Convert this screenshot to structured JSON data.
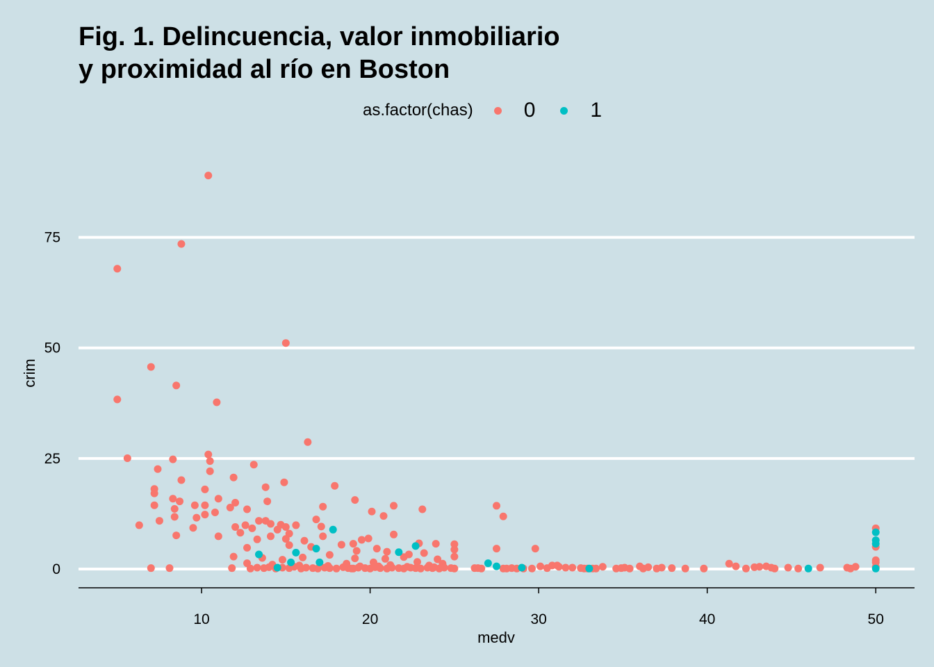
{
  "chart_data": {
    "type": "scatter",
    "title_line1": "Fig. 1. Delincuencia, valor inmobiliario",
    "title_line2": "y proximidad al río en Boston",
    "xlabel": "medv",
    "ylabel": "crim",
    "xlim": [
      2.7,
      52.3
    ],
    "ylim": [
      -4.25,
      93
    ],
    "xticks": [
      10,
      20,
      30,
      40,
      50
    ],
    "xtick_labels": [
      "10",
      "20",
      "30",
      "40",
      "50"
    ],
    "yticks": [
      0,
      25,
      50,
      75
    ],
    "ytick_labels": [
      "0",
      "25",
      "50",
      "75"
    ],
    "grid": "horizontal",
    "legend": {
      "title": "as.factor(chas)",
      "position": "top",
      "entries": [
        "0",
        "1"
      ]
    },
    "colors": {
      "0": "#f8766d",
      "1": "#00bfc4"
    },
    "series": [
      {
        "name": "0",
        "points": [
          [
            10.4,
            88.98
          ],
          [
            8.8,
            73.5
          ],
          [
            5.0,
            67.9
          ],
          [
            15.0,
            51.1
          ],
          [
            7.0,
            45.7
          ],
          [
            8.5,
            41.5
          ],
          [
            5.0,
            38.35
          ],
          [
            10.9,
            37.7
          ],
          [
            16.3,
            28.7
          ],
          [
            10.4,
            25.9
          ],
          [
            5.6,
            25.05
          ],
          [
            8.3,
            24.8
          ],
          [
            10.5,
            24.4
          ],
          [
            13.1,
            23.6
          ],
          [
            7.4,
            22.6
          ],
          [
            10.5,
            22.1
          ],
          [
            11.9,
            20.7
          ],
          [
            8.8,
            20.1
          ],
          [
            14.9,
            19.6
          ],
          [
            17.9,
            18.8
          ],
          [
            13.8,
            18.5
          ],
          [
            7.2,
            18.1
          ],
          [
            10.2,
            18.0
          ],
          [
            7.2,
            17.1
          ],
          [
            8.3,
            15.9
          ],
          [
            11.0,
            15.9
          ],
          [
            19.1,
            15.6
          ],
          [
            8.7,
            15.3
          ],
          [
            13.9,
            15.3
          ],
          [
            12.0,
            15.0
          ],
          [
            7.2,
            14.4
          ],
          [
            9.6,
            14.4
          ],
          [
            10.2,
            14.4
          ],
          [
            21.4,
            14.3
          ],
          [
            27.5,
            14.3
          ],
          [
            17.2,
            14.1
          ],
          [
            11.7,
            13.9
          ],
          [
            8.4,
            13.6
          ],
          [
            12.7,
            13.5
          ],
          [
            23.1,
            13.5
          ],
          [
            20.1,
            13.0
          ],
          [
            10.8,
            12.8
          ],
          [
            10.2,
            12.3
          ],
          [
            20.8,
            12.0
          ],
          [
            27.9,
            11.9
          ],
          [
            8.4,
            11.8
          ],
          [
            9.7,
            11.6
          ],
          [
            16.8,
            11.2
          ],
          [
            7.5,
            10.9
          ],
          [
            13.4,
            10.9
          ],
          [
            13.8,
            10.9
          ],
          [
            14.1,
            10.2
          ],
          [
            14.7,
            10.0
          ],
          [
            6.3,
            9.9
          ],
          [
            12.6,
            9.9
          ],
          [
            15.6,
            9.9
          ],
          [
            17.1,
            9.6
          ],
          [
            12.0,
            9.5
          ],
          [
            15.0,
            9.5
          ],
          [
            9.5,
            9.3
          ],
          [
            13.0,
            9.2
          ],
          [
            14.5,
            8.9
          ],
          [
            12.3,
            8.2
          ],
          [
            15.2,
            8.0
          ],
          [
            21.4,
            7.8
          ],
          [
            8.5,
            7.6
          ],
          [
            11.0,
            7.4
          ],
          [
            14.1,
            7.4
          ],
          [
            17.2,
            7.4
          ],
          [
            19.9,
            6.9
          ],
          [
            15.0,
            6.8
          ],
          [
            13.3,
            6.7
          ],
          [
            19.5,
            6.6
          ],
          [
            16.1,
            6.4
          ],
          [
            22.9,
            5.8
          ],
          [
            19.0,
            5.7
          ],
          [
            23.9,
            5.7
          ],
          [
            25.0,
            5.6
          ],
          [
            18.3,
            5.5
          ],
          [
            15.2,
            5.4
          ],
          [
            16.5,
            5.0
          ],
          [
            12.7,
            4.8
          ],
          [
            20.4,
            4.6
          ],
          [
            27.5,
            4.6
          ],
          [
            29.8,
            4.6
          ],
          [
            25.0,
            4.4
          ],
          [
            19.2,
            4.1
          ],
          [
            21.0,
            3.9
          ],
          [
            23.2,
            3.6
          ],
          [
            22.3,
            3.3
          ],
          [
            17.6,
            3.2
          ],
          [
            25.0,
            2.8
          ],
          [
            11.9,
            2.8
          ],
          [
            22.0,
            2.7
          ],
          [
            19.1,
            2.4
          ],
          [
            20.9,
            2.3
          ],
          [
            24.0,
            2.2
          ],
          [
            14.8,
            2.1
          ],
          [
            13.6,
            2.5
          ],
          [
            16.0,
            2.6
          ],
          [
            18.6,
            1.2
          ],
          [
            20.2,
            1.5
          ],
          [
            22.8,
            1.6
          ],
          [
            24.3,
            1.2
          ],
          [
            12.7,
            1.3
          ],
          [
            14.2,
            1.0
          ],
          [
            15.8,
            0.8
          ],
          [
            17.5,
            0.7
          ],
          [
            19.4,
            0.6
          ],
          [
            21.2,
            0.9
          ],
          [
            23.5,
            0.8
          ],
          [
            11.8,
            0.2
          ],
          [
            7.0,
            0.2
          ],
          [
            8.1,
            0.2
          ],
          [
            12.9,
            0.1
          ],
          [
            13.3,
            0.3
          ],
          [
            13.7,
            0.2
          ],
          [
            14.0,
            0.4
          ],
          [
            14.4,
            0.1
          ],
          [
            14.8,
            0.3
          ],
          [
            15.2,
            0.2
          ],
          [
            15.5,
            0.5
          ],
          [
            15.9,
            0.1
          ],
          [
            16.2,
            0.3
          ],
          [
            16.6,
            0.2
          ],
          [
            16.9,
            0.1
          ],
          [
            17.3,
            0.3
          ],
          [
            17.6,
            0.2
          ],
          [
            18.0,
            0.1
          ],
          [
            18.4,
            0.4
          ],
          [
            18.7,
            0.2
          ],
          [
            19.0,
            0.1
          ],
          [
            19.3,
            0.3
          ],
          [
            19.7,
            0.2
          ],
          [
            20.0,
            0.1
          ],
          [
            20.3,
            0.4
          ],
          [
            20.6,
            0.2
          ],
          [
            21.0,
            0.1
          ],
          [
            21.3,
            0.3
          ],
          [
            21.7,
            0.2
          ],
          [
            22.0,
            0.1
          ],
          [
            22.4,
            0.3
          ],
          [
            22.7,
            0.2
          ],
          [
            23.0,
            0.1
          ],
          [
            23.4,
            0.3
          ],
          [
            23.7,
            0.2
          ],
          [
            24.1,
            0.1
          ],
          [
            24.4,
            0.3
          ],
          [
            24.8,
            0.2
          ],
          [
            25.0,
            0.1
          ],
          [
            18.9,
            0.1
          ],
          [
            20.5,
            0.6
          ],
          [
            22.2,
            0.5
          ],
          [
            23.8,
            0.4
          ],
          [
            26.2,
            0.2
          ],
          [
            26.4,
            0.2
          ],
          [
            26.6,
            0.1
          ],
          [
            27.9,
            0.1
          ],
          [
            28.1,
            0.1
          ],
          [
            28.4,
            0.2
          ],
          [
            28.7,
            0.1
          ],
          [
            29.1,
            0.1
          ],
          [
            29.6,
            0.1
          ],
          [
            30.1,
            0.6
          ],
          [
            30.5,
            0.2
          ],
          [
            30.8,
            0.8
          ],
          [
            31.1,
            0.8
          ],
          [
            31.2,
            0.5
          ],
          [
            31.6,
            0.3
          ],
          [
            32.0,
            0.3
          ],
          [
            32.5,
            0.2
          ],
          [
            32.7,
            0.1
          ],
          [
            32.9,
            0.1
          ],
          [
            33.2,
            0.1
          ],
          [
            33.4,
            0.1
          ],
          [
            33.8,
            0.5
          ],
          [
            34.6,
            0.1
          ],
          [
            34.9,
            0.2
          ],
          [
            35.1,
            0.3
          ],
          [
            35.4,
            0.1
          ],
          [
            36.0,
            0.6
          ],
          [
            36.2,
            0.1
          ],
          [
            36.5,
            0.4
          ],
          [
            37.0,
            0.1
          ],
          [
            37.3,
            0.3
          ],
          [
            37.9,
            0.2
          ],
          [
            38.7,
            0.1
          ],
          [
            39.8,
            0.1
          ],
          [
            41.3,
            1.2
          ],
          [
            41.7,
            0.6
          ],
          [
            42.3,
            0.1
          ],
          [
            42.8,
            0.4
          ],
          [
            43.1,
            0.5
          ],
          [
            43.5,
            0.6
          ],
          [
            43.8,
            0.3
          ],
          [
            44.0,
            0.1
          ],
          [
            44.8,
            0.3
          ],
          [
            45.4,
            0.1
          ],
          [
            46.7,
            0.3
          ],
          [
            48.3,
            0.3
          ],
          [
            48.5,
            0.1
          ],
          [
            48.8,
            0.5
          ],
          [
            50.0,
            9.2
          ],
          [
            50.0,
            5.0
          ],
          [
            50.0,
            2.0
          ],
          [
            50.0,
            1.5
          ],
          [
            50.0,
            0.5
          ]
        ]
      },
      {
        "name": "1",
        "points": [
          [
            13.4,
            3.3
          ],
          [
            15.6,
            3.7
          ],
          [
            17.8,
            8.9
          ],
          [
            16.8,
            4.6
          ],
          [
            17.0,
            1.5
          ],
          [
            21.7,
            3.8
          ],
          [
            22.7,
            5.2
          ],
          [
            27.0,
            1.3
          ],
          [
            27.5,
            0.6
          ],
          [
            29.0,
            0.3
          ],
          [
            46.0,
            0.1
          ],
          [
            50.0,
            8.3
          ],
          [
            50.0,
            6.5
          ],
          [
            50.0,
            5.7
          ],
          [
            50.0,
            0.1
          ],
          [
            33.0,
            0.1
          ],
          [
            15.3,
            1.5
          ],
          [
            14.5,
            0.3
          ]
        ]
      }
    ]
  }
}
